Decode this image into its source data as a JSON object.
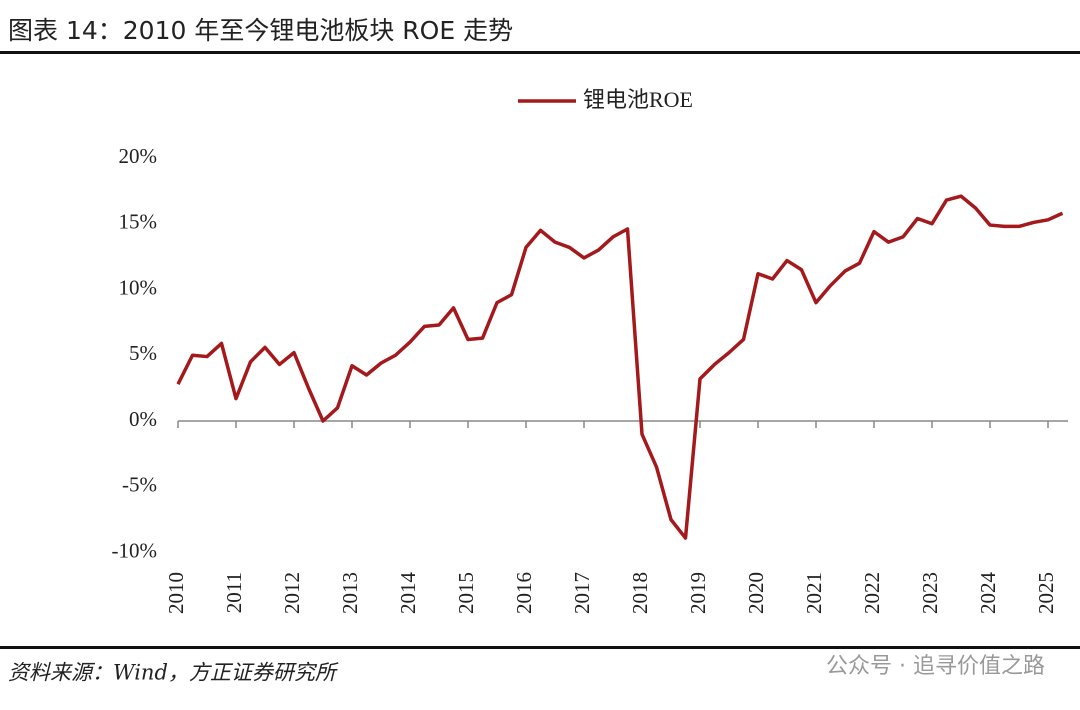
{
  "header": {
    "title": "图表 14：2010 年至今锂电池板块 ROE 走势"
  },
  "chart_data": {
    "type": "line",
    "categories": [
      "2010",
      null,
      null,
      null,
      "2011",
      null,
      null,
      null,
      "2012",
      null,
      null,
      null,
      "2013",
      null,
      null,
      null,
      "2014",
      null,
      null,
      null,
      "2015",
      null,
      null,
      null,
      "2016",
      null,
      null,
      null,
      "2017",
      null,
      null,
      null,
      "2018",
      null,
      null,
      null,
      "2019",
      null,
      null,
      null,
      "2020",
      null,
      null,
      null,
      "2021",
      null,
      null,
      null,
      "2022",
      null,
      null,
      null,
      "2023",
      null,
      null,
      null,
      "2024",
      null,
      null,
      null,
      "2025",
      null
    ],
    "series": [
      {
        "name": "锂电池ROE",
        "color": "#a3191c",
        "values": [
          2.8,
          5.0,
          4.9,
          5.9,
          1.7,
          4.5,
          5.6,
          4.3,
          5.2,
          2.5,
          0.0,
          1.0,
          4.2,
          3.5,
          4.4,
          5.0,
          6.0,
          7.2,
          7.3,
          8.6,
          6.2,
          6.3,
          9.0,
          9.6,
          13.2,
          14.5,
          13.6,
          13.2,
          12.4,
          13.0,
          14.0,
          14.6,
          -1.0,
          -3.5,
          -7.5,
          -8.9,
          3.2,
          4.3,
          5.2,
          6.2,
          11.2,
          10.8,
          12.2,
          11.5,
          9.0,
          10.3,
          11.4,
          12.0,
          14.4,
          13.6,
          14.0,
          15.4,
          15.0,
          16.8,
          17.1,
          16.2,
          14.9,
          14.8,
          14.8,
          15.1,
          15.3,
          15.8
        ]
      }
    ],
    "ylim": [
      -10,
      20
    ],
    "yticks": [
      {
        "value": -10,
        "label": "-10%"
      },
      {
        "value": -5,
        "label": "-5%"
      },
      {
        "value": 0,
        "label": "0%"
      },
      {
        "value": 5,
        "label": "5%"
      },
      {
        "value": 10,
        "label": "10%"
      },
      {
        "value": 15,
        "label": "15%"
      },
      {
        "value": 20,
        "label": "20%"
      }
    ],
    "legend": "top"
  },
  "footer": {
    "source": "资料来源：Wind，方正证券研究所",
    "watermark": "公众号 · 追寻价值之路"
  }
}
